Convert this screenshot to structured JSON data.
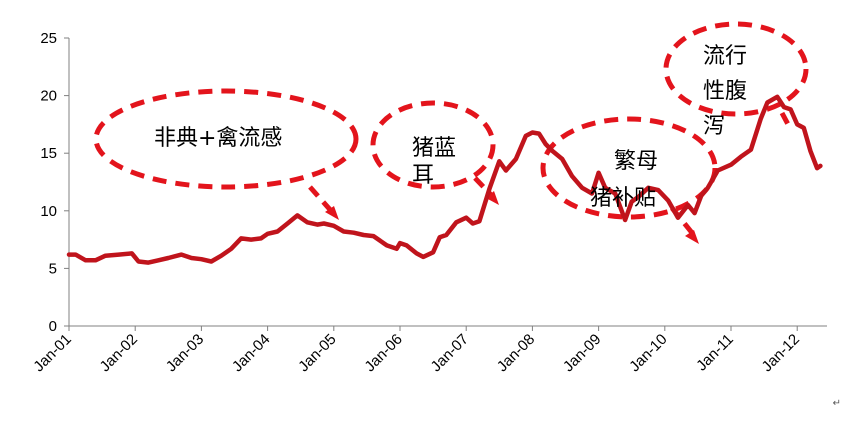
{
  "chart_data": {
    "type": "line",
    "title": "",
    "xlabel": "",
    "ylabel": "",
    "ylim": [
      0,
      25
    ],
    "yticks": [
      0,
      5,
      10,
      15,
      20,
      25
    ],
    "grid": false,
    "line_color": "#C0141C",
    "annotation_color": "#E3141C",
    "xticks": [
      {
        "label": "Jan-01",
        "x": 2001.0
      },
      {
        "label": "Jan-02",
        "x": 2002.0
      },
      {
        "label": "Jan-03",
        "x": 2003.0
      },
      {
        "label": "Jan-04",
        "x": 2004.0
      },
      {
        "label": "Jan-05",
        "x": 2005.0
      },
      {
        "label": "Jan-06",
        "x": 2006.0
      },
      {
        "label": "Jan-07",
        "x": 2007.0
      },
      {
        "label": "Jan-08",
        "x": 2008.0
      },
      {
        "label": "Jan-09",
        "x": 2009.0
      },
      {
        "label": "Jan-10",
        "x": 2010.0
      },
      {
        "label": "Jan-11",
        "x": 2011.0
      },
      {
        "label": "Jan-12",
        "x": 2012.0
      }
    ],
    "series": [
      {
        "x": [
          2001.0,
          2001.1,
          2001.25,
          2001.4,
          2001.55,
          2001.75,
          2001.95,
          2002.05,
          2002.2,
          2002.35,
          2002.5,
          2002.7,
          2002.85,
          2003.0,
          2003.15,
          2003.3,
          2003.45,
          2003.6,
          2003.75,
          2003.9,
          2004.0,
          2004.15,
          2004.3,
          2004.45,
          2004.6,
          2004.75,
          2004.85,
          2005.0,
          2005.15,
          2005.3,
          2005.45,
          2005.6,
          2005.8,
          2005.95,
          2006.0,
          2006.1,
          2006.25,
          2006.35,
          2006.5,
          2006.6,
          2006.7,
          2006.85,
          2007.0,
          2007.1,
          2007.2,
          2007.35,
          2007.5,
          2007.6,
          2007.75,
          2007.9,
          2008.0,
          2008.1,
          2008.2,
          2008.3,
          2008.45,
          2008.6,
          2008.75,
          2008.9,
          2009.0,
          2009.1,
          2009.25,
          2009.4,
          2009.5,
          2009.6,
          2009.75,
          2009.9,
          2010.05,
          2010.2,
          2010.35,
          2010.45,
          2010.55,
          2010.65,
          2010.8,
          2011.0,
          2011.15,
          2011.3,
          2011.45,
          2011.55,
          2011.7,
          2011.8,
          2011.9,
          2012.0,
          2012.1,
          2012.2,
          2012.3,
          2012.35
        ],
        "y": [
          6.2,
          6.2,
          5.7,
          5.7,
          6.1,
          6.2,
          6.3,
          5.6,
          5.5,
          5.7,
          5.9,
          6.2,
          5.9,
          5.8,
          5.6,
          6.1,
          6.7,
          7.6,
          7.5,
          7.6,
          8.0,
          8.2,
          8.9,
          9.6,
          9.0,
          8.8,
          8.9,
          8.7,
          8.2,
          8.1,
          7.9,
          7.8,
          7.0,
          6.7,
          7.2,
          7.0,
          6.3,
          6.0,
          6.4,
          7.7,
          7.9,
          9.0,
          9.4,
          8.9,
          9.1,
          11.9,
          14.3,
          13.5,
          14.5,
          16.5,
          16.8,
          16.7,
          15.8,
          15.2,
          14.5,
          13.0,
          12.0,
          11.5,
          13.3,
          12.0,
          11.5,
          9.2,
          10.8,
          11.2,
          12.0,
          11.8,
          10.9,
          9.4,
          10.5,
          9.8,
          11.3,
          12.0,
          13.5,
          14.0,
          14.7,
          15.3,
          18.0,
          19.4,
          19.9,
          19.0,
          18.8,
          17.5,
          17.2,
          15.2,
          13.7,
          13.9
        ]
      }
    ],
    "annotations": [
      {
        "label": "非典+禽流感",
        "lines": [
          "非典+禽流感"
        ]
      },
      {
        "label": "猪蓝耳",
        "lines": [
          "猪蓝",
          "耳"
        ]
      },
      {
        "label": "繁母猪补贴",
        "lines": [
          "繁母",
          "猪补贴"
        ]
      },
      {
        "label": "流行性腹泻",
        "lines": [
          "流行",
          "性腹",
          "泻"
        ]
      }
    ],
    "corner_mark": "↵"
  }
}
